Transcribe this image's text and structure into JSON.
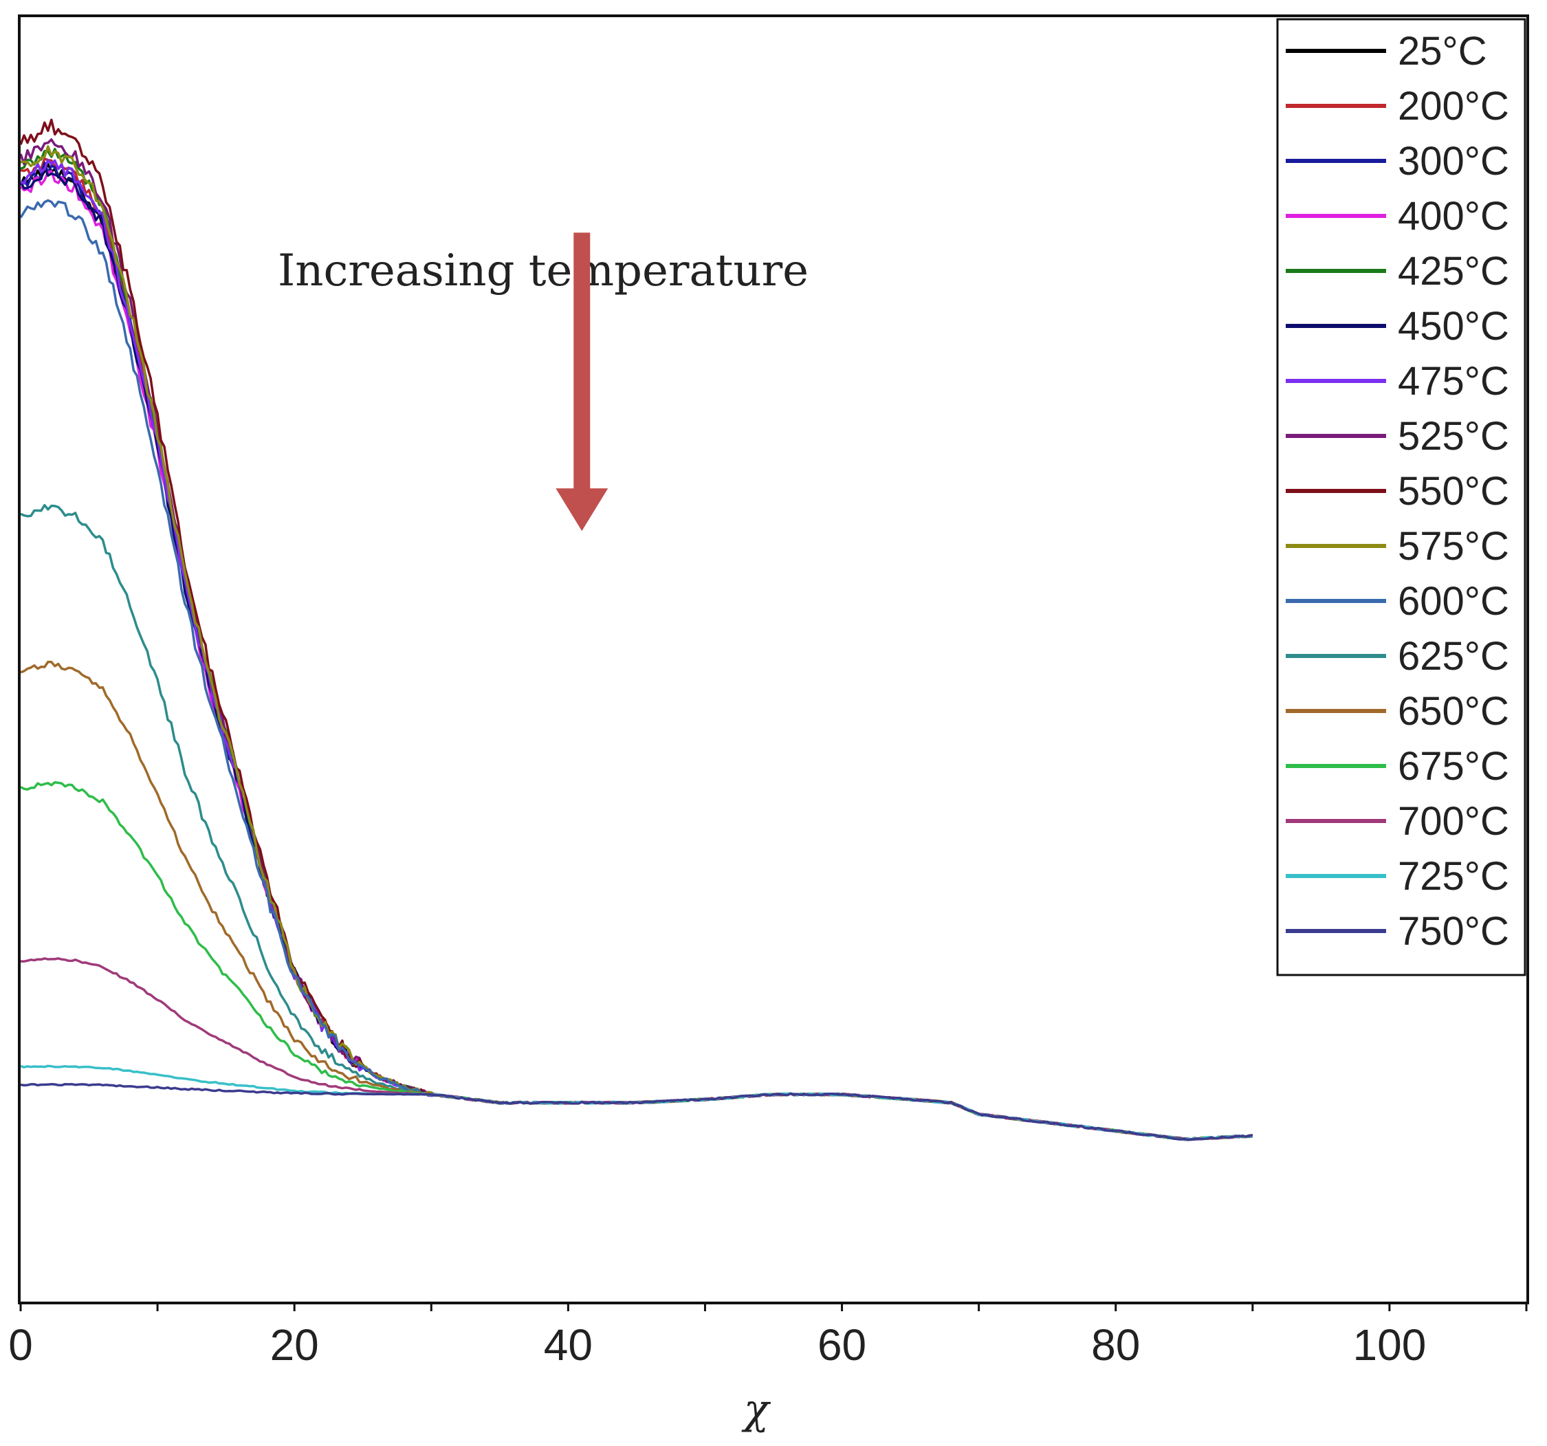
{
  "chart_data": {
    "type": "line",
    "title": "",
    "xlabel": "χ",
    "ylabel": "",
    "xlim": [
      0,
      110
    ],
    "ylim": [
      -1.25,
      6.5
    ],
    "grid": false,
    "yticks_shown": false,
    "x_ticks": [
      {
        "value": 0,
        "label": "0"
      },
      {
        "value": 20,
        "label": "20"
      },
      {
        "value": 40,
        "label": "40"
      },
      {
        "value": 60,
        "label": "60"
      },
      {
        "value": 80,
        "label": "80"
      },
      {
        "value": 100,
        "label": "100"
      }
    ],
    "x_minor_ticks": [
      10,
      30,
      50,
      70,
      90,
      110
    ],
    "legend_position": "top-right",
    "annotation": {
      "text": "Increasing temperature",
      "arrow_color": "#c0504d",
      "arrow_from_y": 5.2,
      "arrow_to_y": 3.4,
      "arrow_x": 41
    }
  },
  "tail": {
    "x": [
      30,
      35,
      40,
      45,
      50,
      55,
      60,
      65,
      68,
      70,
      75,
      80,
      85,
      90
    ],
    "y": [
      0.0,
      -0.05,
      -0.05,
      -0.05,
      -0.03,
      0.0,
      0.0,
      -0.03,
      -0.05,
      -0.12,
      -0.17,
      -0.22,
      -0.27,
      -0.25
    ]
  },
  "shape": {
    "x": [
      0,
      2,
      4,
      6,
      8,
      10,
      12,
      14,
      16,
      18,
      20,
      22,
      24,
      26,
      28,
      30
    ],
    "f": [
      0.98,
      1.0,
      0.985,
      0.94,
      0.83,
      0.7,
      0.55,
      0.43,
      0.33,
      0.22,
      0.13,
      0.075,
      0.04,
      0.02,
      0.008,
      0.0
    ]
  },
  "series": [
    {
      "name": "25°C",
      "color": "#000000",
      "peak": 5.6
    },
    {
      "name": "200°C",
      "color": "#c0282d",
      "peak": 5.65
    },
    {
      "name": "300°C",
      "color": "#1a1a9c",
      "peak": 5.6
    },
    {
      "name": "400°C",
      "color": "#e020e0",
      "peak": 5.55
    },
    {
      "name": "425°C",
      "color": "#1a7a1a",
      "peak": 5.7
    },
    {
      "name": "450°C",
      "color": "#0d0d6e",
      "peak": 5.58
    },
    {
      "name": "475°C",
      "color": "#7b2ff0",
      "peak": 5.62
    },
    {
      "name": "525°C",
      "color": "#7a1a7a",
      "peak": 5.75
    },
    {
      "name": "550°C",
      "color": "#7d0f1a",
      "peak": 5.85
    },
    {
      "name": "575°C",
      "color": "#8c8c14",
      "peak": 5.7
    },
    {
      "name": "600°C",
      "color": "#3a6aae",
      "peak": 5.4
    },
    {
      "name": "625°C",
      "color": "#2e8c8c",
      "peak": 3.55
    },
    {
      "name": "650°C",
      "color": "#a06a2a",
      "peak": 2.6
    },
    {
      "name": "675°C",
      "color": "#2ebd4a",
      "peak": 1.88
    },
    {
      "name": "700°C",
      "color": "#a03a7a",
      "peak": 0.82
    },
    {
      "name": "725°C",
      "color": "#38c0c8",
      "peak": 0.17
    },
    {
      "name": "750°C",
      "color": "#3b3b8f",
      "peak": 0.06
    }
  ]
}
